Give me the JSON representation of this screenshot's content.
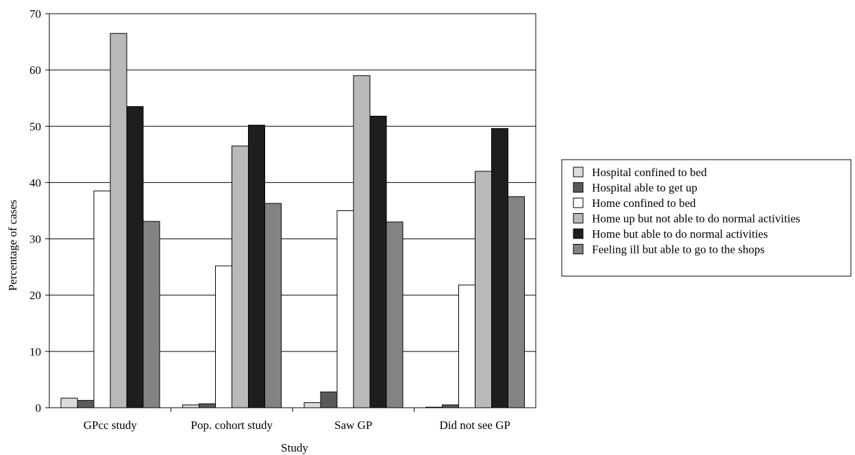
{
  "chart_data": {
    "type": "bar",
    "title": "",
    "xlabel": "Study",
    "ylabel": "Percentage of cases",
    "ylim": [
      0,
      70
    ],
    "yticks": [
      0,
      10,
      20,
      30,
      40,
      50,
      60,
      70
    ],
    "grid": "horizontal",
    "legend_position": "right",
    "categories": [
      "GPcc study",
      "Pop. cohort study",
      "Saw GP",
      "Did not see GP"
    ],
    "series": [
      {
        "name": "Hospital confined to bed",
        "color": "#dcdcdc",
        "values": [
          1.7,
          0.5,
          0.9,
          0.1
        ]
      },
      {
        "name": "Hospital able to get up",
        "color": "#5a5a5a",
        "values": [
          1.3,
          0.7,
          2.8,
          0.5
        ]
      },
      {
        "name": "Home confined to bed",
        "color": "#ffffff",
        "values": [
          38.5,
          25.2,
          35.0,
          21.8
        ]
      },
      {
        "name": "Home up but not able to do normal activities",
        "color": "#b9b9b9",
        "values": [
          66.5,
          46.5,
          59.0,
          42.0
        ]
      },
      {
        "name": "Home but able to do normal activities",
        "color": "#1e1e1e",
        "values": [
          53.5,
          50.2,
          51.8,
          49.6
        ]
      },
      {
        "name": "Feeling ill but able to go to the shops",
        "color": "#838383",
        "values": [
          33.1,
          36.3,
          33.0,
          37.5
        ]
      }
    ]
  }
}
